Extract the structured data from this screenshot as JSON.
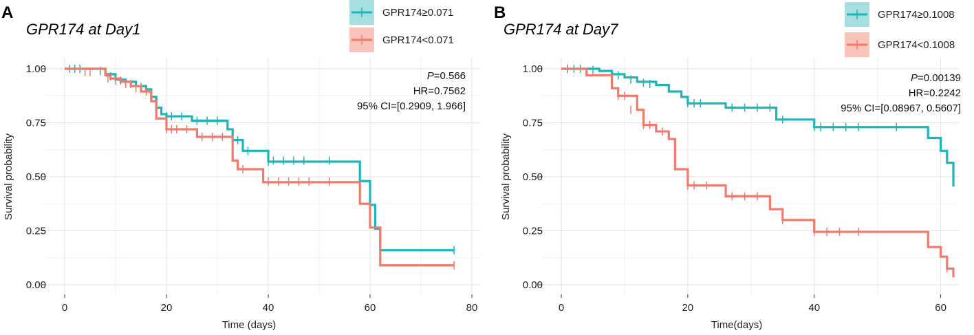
{
  "chart_data": [
    {
      "type": "line",
      "subtype": "kaplan-meier",
      "panel_label": "A",
      "title": "GPR174 at Day1",
      "xlabel": "Time (days)",
      "ylabel": "Survival probability",
      "xlim": [
        0,
        80
      ],
      "ylim": [
        0,
        1
      ],
      "xticks": [
        0,
        20,
        40,
        60,
        80
      ],
      "yticks": [
        0.0,
        0.25,
        0.5,
        0.75,
        1.0
      ],
      "xtick_labels": [
        "0",
        "20",
        "40",
        "60",
        "80"
      ],
      "ytick_labels": [
        "0.00",
        "0.25",
        "0.50",
        "0.75",
        "1.00"
      ],
      "grid": true,
      "legend_position": "top-right",
      "stats": {
        "p_prefix": "P",
        "p_value": "=0.566",
        "hr": "HR=0.7562",
        "ci": "95% CI=[0.2909, 1.966]"
      },
      "series": [
        {
          "name": "GPR174≥0.071",
          "color": "#1eb5b8",
          "legend_bg": "#a5dfe0",
          "steps": [
            [
              0,
              1.0
            ],
            [
              8,
              0.975
            ],
            [
              10,
              0.95
            ],
            [
              12,
              0.94
            ],
            [
              14,
              0.92
            ],
            [
              16,
              0.905
            ],
            [
              17,
              0.87
            ],
            [
              18,
              0.82
            ],
            [
              19,
              0.79
            ],
            [
              20,
              0.78
            ],
            [
              25,
              0.76
            ],
            [
              32,
              0.72
            ],
            [
              33,
              0.67
            ],
            [
              35,
              0.62
            ],
            [
              40,
              0.57
            ],
            [
              58,
              0.48
            ],
            [
              60,
              0.37
            ],
            [
              61,
              0.26
            ],
            [
              62,
              0.16
            ],
            [
              76.5,
              0.16
            ]
          ],
          "censored": [
            [
              1,
              1.0
            ],
            [
              2,
              1.0
            ],
            [
              3,
              1.0
            ],
            [
              7,
              0.99
            ],
            [
              9,
              0.965
            ],
            [
              11,
              0.945
            ],
            [
              13,
              0.93
            ],
            [
              15,
              0.915
            ],
            [
              20,
              0.78
            ],
            [
              21,
              0.78
            ],
            [
              23,
              0.78
            ],
            [
              26,
              0.76
            ],
            [
              28,
              0.76
            ],
            [
              30,
              0.76
            ],
            [
              34,
              0.67
            ],
            [
              36,
              0.62
            ],
            [
              40,
              0.57
            ],
            [
              41,
              0.575
            ],
            [
              43,
              0.575
            ],
            [
              45,
              0.575
            ],
            [
              47,
              0.575
            ],
            [
              52,
              0.575
            ],
            [
              76.5,
              0.16
            ]
          ]
        },
        {
          "name": "GPR174<0.071",
          "color": "#f07a6c",
          "legend_bg": "#f8c3bb",
          "steps": [
            [
              0,
              1.0
            ],
            [
              8,
              0.97
            ],
            [
              9,
              0.955
            ],
            [
              11,
              0.94
            ],
            [
              13,
              0.92
            ],
            [
              15,
              0.895
            ],
            [
              17,
              0.85
            ],
            [
              18,
              0.77
            ],
            [
              20,
              0.72
            ],
            [
              26,
              0.685
            ],
            [
              33,
              0.575
            ],
            [
              34,
              0.535
            ],
            [
              39,
              0.475
            ],
            [
              58,
              0.375
            ],
            [
              60,
              0.265
            ],
            [
              62,
              0.09
            ],
            [
              76.5,
              0.09
            ]
          ],
          "censored": [
            [
              4,
              0.985
            ],
            [
              5,
              0.985
            ],
            [
              8.5,
              0.955
            ],
            [
              10,
              0.945
            ],
            [
              12,
              0.93
            ],
            [
              14,
              0.91
            ],
            [
              16,
              0.895
            ],
            [
              20,
              0.72
            ],
            [
              21,
              0.72
            ],
            [
              22,
              0.72
            ],
            [
              24,
              0.72
            ],
            [
              27,
              0.685
            ],
            [
              29,
              0.685
            ],
            [
              31,
              0.685
            ],
            [
              35,
              0.535
            ],
            [
              40,
              0.478
            ],
            [
              42,
              0.478
            ],
            [
              44,
              0.478
            ],
            [
              46,
              0.478
            ],
            [
              48,
              0.478
            ],
            [
              52,
              0.478
            ],
            [
              76.5,
              0.09
            ]
          ]
        }
      ]
    },
    {
      "type": "line",
      "subtype": "kaplan-meier",
      "panel_label": "B",
      "title": "GPR174 at Day7",
      "xlabel": "Time(days)",
      "ylabel": "Survival probability",
      "xlim": [
        0,
        62
      ],
      "ylim": [
        0,
        1
      ],
      "xticks": [
        0,
        20,
        40,
        60
      ],
      "yticks": [
        0.0,
        0.25,
        0.5,
        0.75,
        1.0
      ],
      "xtick_labels": [
        "0",
        "20",
        "40",
        "60"
      ],
      "ytick_labels": [
        "0.00",
        "0.25",
        "0.50",
        "0.75",
        "1.00"
      ],
      "grid": true,
      "legend_position": "top-right",
      "stats": {
        "p_prefix": "P",
        "p_value": "=0.00139",
        "hr": "HR=0.2242",
        "ci": "95% CI=[0.08967,   0.5607]"
      },
      "series": [
        {
          "name": "GPR174≥0.1008",
          "color": "#1eb5b8",
          "legend_bg": "#a5dfe0",
          "steps": [
            [
              0,
              1.0
            ],
            [
              6,
              0.99
            ],
            [
              8,
              0.975
            ],
            [
              10,
              0.96
            ],
            [
              12,
              0.94
            ],
            [
              15,
              0.925
            ],
            [
              17,
              0.895
            ],
            [
              19,
              0.87
            ],
            [
              20,
              0.84
            ],
            [
              26,
              0.82
            ],
            [
              34,
              0.765
            ],
            [
              40,
              0.73
            ],
            [
              58,
              0.68
            ],
            [
              60,
              0.62
            ],
            [
              61,
              0.565
            ],
            [
              62,
              0.455
            ]
          ],
          "censored": [
            [
              1,
              1.0
            ],
            [
              2,
              1.0
            ],
            [
              3,
              1.0
            ],
            [
              5,
              0.995
            ],
            [
              9,
              0.97
            ],
            [
              11,
              0.95
            ],
            [
              13,
              0.935
            ],
            [
              14,
              0.93
            ],
            [
              20,
              0.84
            ],
            [
              21,
              0.84
            ],
            [
              22,
              0.84
            ],
            [
              27,
              0.82
            ],
            [
              29,
              0.82
            ],
            [
              31,
              0.82
            ],
            [
              33,
              0.82
            ],
            [
              35,
              0.765
            ],
            [
              40,
              0.73
            ],
            [
              41,
              0.73
            ],
            [
              43,
              0.73
            ],
            [
              45,
              0.73
            ],
            [
              47,
              0.73
            ],
            [
              53,
              0.73
            ]
          ]
        },
        {
          "name": "GPR174<0.1008",
          "color": "#f07a6c",
          "legend_bg": "#f8c3bb",
          "steps": [
            [
              0,
              1.0
            ],
            [
              4,
              0.97
            ],
            [
              8,
              0.91
            ],
            [
              9,
              0.875
            ],
            [
              12,
              0.81
            ],
            [
              13,
              0.74
            ],
            [
              15,
              0.71
            ],
            [
              17,
              0.675
            ],
            [
              18,
              0.535
            ],
            [
              20,
              0.46
            ],
            [
              26,
              0.41
            ],
            [
              33,
              0.35
            ],
            [
              35,
              0.3
            ],
            [
              40,
              0.245
            ],
            [
              58,
              0.175
            ],
            [
              60,
              0.13
            ],
            [
              61,
              0.075
            ],
            [
              62,
              0.035
            ]
          ],
          "censored": [
            [
              9,
              0.875
            ],
            [
              10,
              0.875
            ],
            [
              11,
              0.81
            ],
            [
              13,
              0.74
            ],
            [
              14,
              0.74
            ],
            [
              16,
              0.71
            ],
            [
              20,
              0.46
            ],
            [
              21,
              0.46
            ],
            [
              23,
              0.46
            ],
            [
              27,
              0.41
            ],
            [
              29,
              0.41
            ],
            [
              31,
              0.41
            ],
            [
              35,
              0.3
            ],
            [
              40,
              0.245
            ],
            [
              42,
              0.245
            ],
            [
              44,
              0.245
            ],
            [
              47,
              0.245
            ],
            [
              61,
              0.075
            ]
          ]
        }
      ]
    }
  ]
}
